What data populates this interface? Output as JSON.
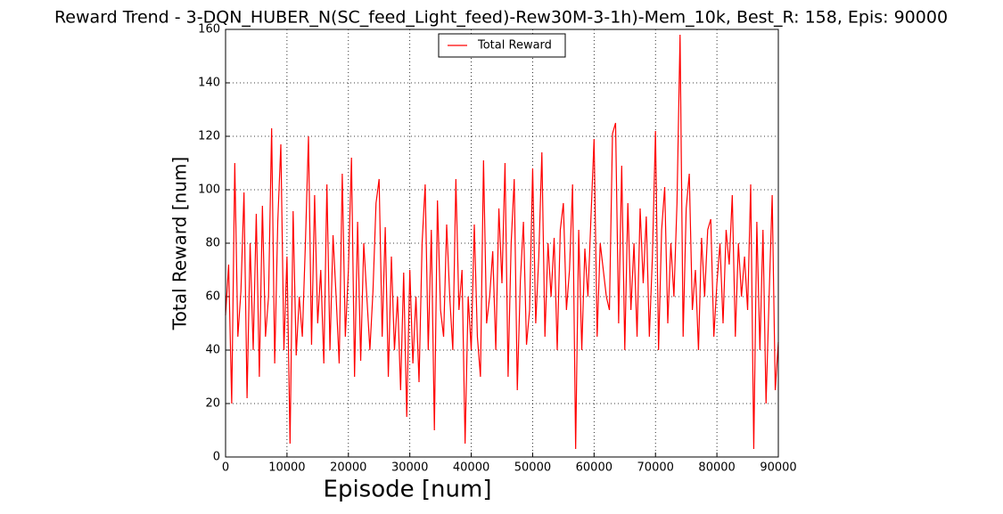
{
  "chart_data": {
    "type": "line",
    "title": "Reward Trend - 3-DQN_HUBER_N(SC_feed_Light_feed)-Rew30M-3-1h)-Mem_10k, Best_R: 158, Epis: 90000",
    "xlabel": "Episode [num]",
    "ylabel": "Total Reward [num]",
    "x": [
      0,
      500,
      1000,
      1500,
      2000,
      2500,
      3000,
      3500,
      4000,
      4500,
      5000,
      5500,
      6000,
      6500,
      7000,
      7500,
      8000,
      8500,
      9000,
      9500,
      10000,
      10500,
      11000,
      11500,
      12000,
      12500,
      13000,
      13500,
      14000,
      14500,
      15000,
      15500,
      16000,
      16500,
      17000,
      17500,
      18000,
      18500,
      19000,
      19500,
      20000,
      20500,
      21000,
      21500,
      22000,
      22500,
      23000,
      23500,
      24000,
      24500,
      25000,
      25500,
      26000,
      26500,
      27000,
      27500,
      28000,
      28500,
      29000,
      29500,
      30000,
      30500,
      31000,
      31500,
      32000,
      32500,
      33000,
      33500,
      34000,
      34500,
      35000,
      35500,
      36000,
      36500,
      37000,
      37500,
      38000,
      38500,
      39000,
      39500,
      40000,
      40500,
      41000,
      41500,
      42000,
      42500,
      43000,
      43500,
      44000,
      44500,
      45000,
      45500,
      46000,
      46500,
      47000,
      47500,
      48000,
      48500,
      49000,
      49500,
      50000,
      50500,
      51000,
      51500,
      52000,
      52500,
      53000,
      53500,
      54000,
      54500,
      55000,
      55500,
      56000,
      56500,
      57000,
      57500,
      58000,
      58500,
      59000,
      59500,
      60000,
      60500,
      61000,
      61500,
      62000,
      62500,
      63000,
      63500,
      64000,
      64500,
      65000,
      65500,
      66000,
      66500,
      67000,
      67500,
      68000,
      68500,
      69000,
      69500,
      70000,
      70500,
      71000,
      71500,
      72000,
      72500,
      73000,
      73500,
      74000,
      74500,
      75000,
      75500,
      76000,
      76500,
      77000,
      77500,
      78000,
      78500,
      79000,
      79500,
      80000,
      80500,
      81000,
      81500,
      82000,
      82500,
      83000,
      83500,
      84000,
      84500,
      85000,
      85500,
      86000,
      86500,
      87000,
      87500,
      88000,
      88500,
      89000,
      89500,
      90000
    ],
    "series": [
      {
        "name": "Total Reward",
        "color": "#ff0000",
        "values": [
          53,
          72,
          20,
          110,
          45,
          62,
          99,
          22,
          80,
          40,
          91,
          30,
          94,
          45,
          60,
          123,
          35,
          88,
          117,
          40,
          75,
          5,
          92,
          38,
          60,
          45,
          80,
          120,
          42,
          98,
          50,
          70,
          35,
          102,
          40,
          83,
          60,
          35,
          106,
          45,
          70,
          112,
          30,
          88,
          36,
          80,
          60,
          40,
          62,
          95,
          104,
          45,
          86,
          30,
          75,
          40,
          60,
          25,
          69,
          15,
          70,
          35,
          60,
          28,
          80,
          102,
          40,
          85,
          10,
          96,
          55,
          45,
          87,
          60,
          40,
          104,
          55,
          70,
          5,
          60,
          40,
          87,
          45,
          30,
          111,
          50,
          60,
          77,
          40,
          93,
          65,
          110,
          30,
          80,
          104,
          25,
          66,
          88,
          42,
          55,
          108,
          50,
          75,
          114,
          45,
          80,
          60,
          82,
          40,
          85,
          95,
          55,
          70,
          102,
          3,
          85,
          40,
          78,
          60,
          90,
          119,
          45,
          80,
          70,
          60,
          55,
          121,
          125,
          50,
          109,
          40,
          95,
          55,
          80,
          45,
          93,
          65,
          90,
          45,
          75,
          122,
          40,
          85,
          101,
          50,
          80,
          60,
          95,
          158,
          45,
          93,
          106,
          55,
          70,
          40,
          82,
          60,
          85,
          89,
          45,
          65,
          80,
          50,
          85,
          72,
          98,
          45,
          80,
          60,
          75,
          55,
          102,
          3,
          88,
          40,
          85,
          20,
          60,
          98,
          25,
          43
        ]
      }
    ],
    "xlim": [
      0,
      90000
    ],
    "ylim": [
      0,
      160
    ],
    "xticks": [
      0,
      10000,
      20000,
      30000,
      40000,
      50000,
      60000,
      70000,
      80000,
      90000
    ],
    "yticks": [
      0,
      20,
      40,
      60,
      80,
      100,
      120,
      140,
      160
    ],
    "grid": true,
    "legend": "upper center"
  }
}
